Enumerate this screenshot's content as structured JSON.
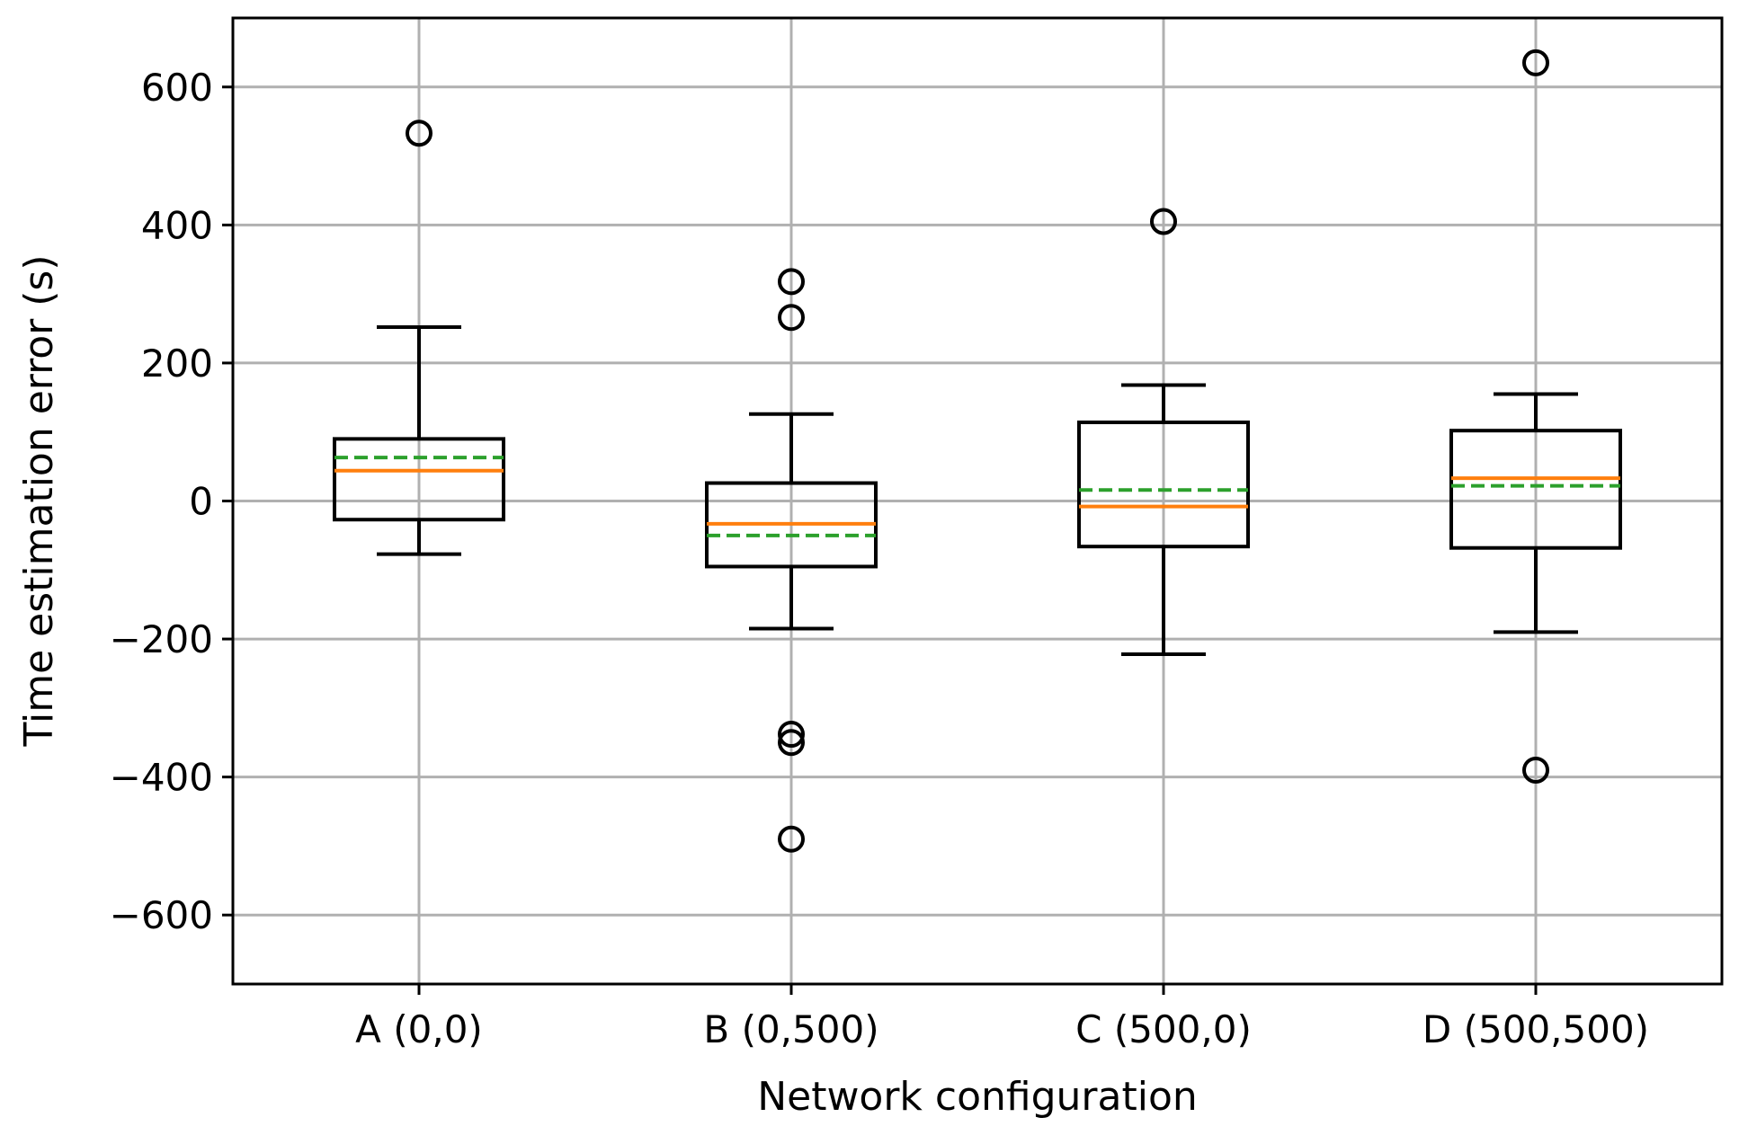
{
  "chart_data": {
    "type": "box",
    "title": "",
    "xlabel": "Network configuration",
    "ylabel": "Time estimation error (s)",
    "ylim": [
      -700,
      700
    ],
    "yticks": [
      600,
      400,
      200,
      0,
      -200,
      -400,
      -600
    ],
    "ytick_labels": [
      "600",
      "400",
      "200",
      "0",
      "−200",
      "−400",
      "−600"
    ],
    "grid": true,
    "categories": [
      "A (0,0)",
      "B (0,500)",
      "C (500,0)",
      "D (500,500)"
    ],
    "boxes": [
      {
        "whisker_low": -77,
        "q1": -27,
        "median": 44,
        "mean": 63,
        "q3": 90,
        "whisker_high": 252,
        "outliers": [
          533
        ]
      },
      {
        "whisker_low": -185,
        "q1": -95,
        "median": -33,
        "mean": -50,
        "q3": 26,
        "whisker_high": 126,
        "outliers": [
          318,
          266,
          -338,
          -350,
          -490
        ]
      },
      {
        "whisker_low": -222,
        "q1": -66,
        "median": -8,
        "mean": 16,
        "q3": 114,
        "whisker_high": 168,
        "outliers": [
          405
        ]
      },
      {
        "whisker_low": -190,
        "q1": -68,
        "median": 33,
        "mean": 22,
        "q3": 102,
        "whisker_high": 155,
        "outliers": [
          635,
          -390
        ]
      }
    ],
    "colors": {
      "box": "#000000",
      "median": "#ff7f0e",
      "mean": "#2ca02c",
      "grid": "#b0b0b0"
    }
  }
}
